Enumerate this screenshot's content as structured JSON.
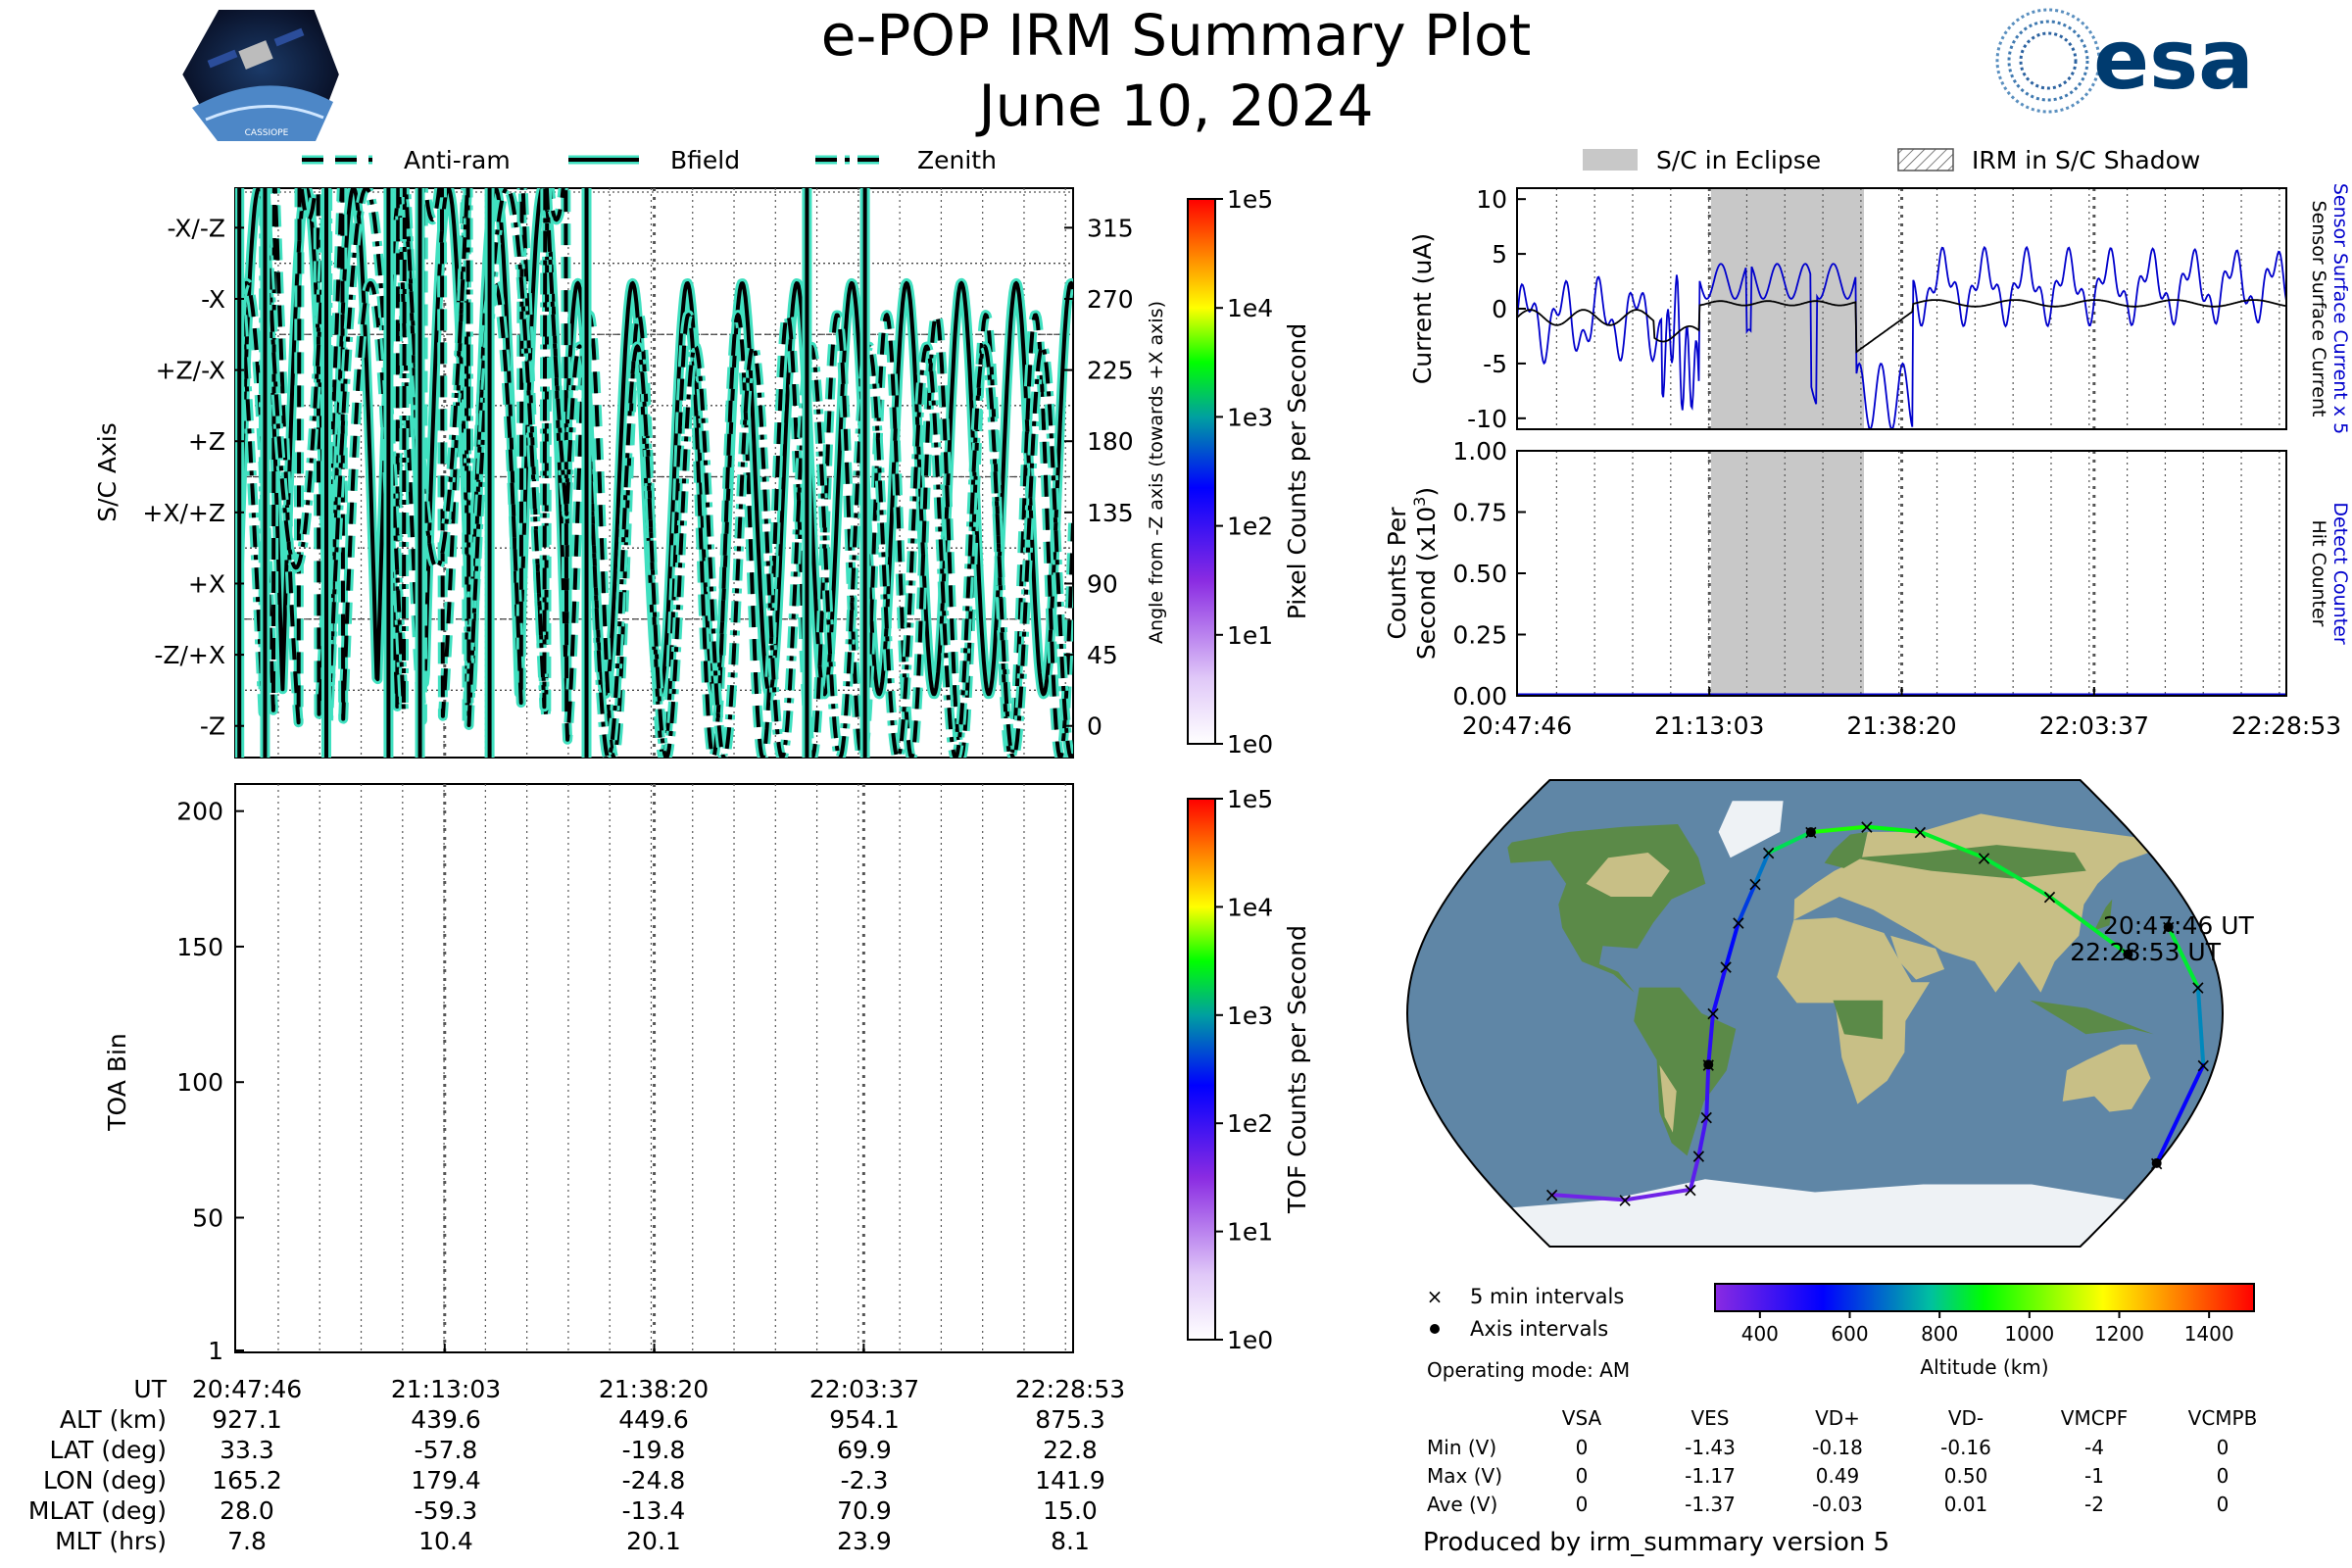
{
  "header": {
    "title": "e-POP IRM Summary Plot",
    "date": "June 10, 2024",
    "mission_badge_text": "CASSIOPE",
    "agency_logo_text": "esa"
  },
  "colors": {
    "curve_fill": "#40e0c0",
    "eclipse": "#c8c8c8",
    "detect_counter": "#0000cc",
    "map_ocean": "#5f86a6",
    "map_land": "#c8bf86",
    "map_forest": "#5b8a48",
    "map_ice": "#eef2f5"
  },
  "chart_data": [
    {
      "id": "angle-panel",
      "type": "line",
      "legend": [
        {
          "name": "Anti-ram",
          "style": "dashed"
        },
        {
          "name": "Bfield",
          "style": "solid"
        },
        {
          "name": "Zenith",
          "style": "dashdot"
        }
      ],
      "ylabel": "S/C Axis",
      "ylabel_right": "Angle from -Z axis (towards +X axis)",
      "ylim": [
        -20,
        340
      ],
      "axis_ticks": [
        {
          "label": "-X/-Z",
          "angle": 315
        },
        {
          "label": "-X",
          "angle": 270
        },
        {
          "label": "+Z/-X",
          "angle": 225
        },
        {
          "label": "+Z",
          "angle": 180
        },
        {
          "label": "+X/+Z",
          "angle": 135
        },
        {
          "label": "+X",
          "angle": 90
        },
        {
          "label": "-Z/+X",
          "angle": 45
        },
        {
          "label": "-Z",
          "angle": 0
        }
      ],
      "right_ticks": [
        315,
        270,
        225,
        180,
        135,
        90,
        45,
        0
      ],
      "colorbar": {
        "label": "Pixel Counts per Second",
        "ticks": [
          "1e5",
          "1e4",
          "1e3",
          "1e2",
          "1e1",
          "1e0"
        ]
      }
    },
    {
      "id": "toa-panel",
      "type": "heatmap",
      "ylabel": "TOA Bin",
      "ylim": [
        1,
        210
      ],
      "yticks": [
        200,
        150,
        100,
        50,
        1
      ],
      "colorbar": {
        "label": "TOF Counts per Second",
        "ticks": [
          "1e5",
          "1e4",
          "1e3",
          "1e2",
          "1e1",
          "1e0"
        ]
      }
    },
    {
      "id": "current-panel",
      "type": "line",
      "legend": [
        {
          "name": "S/C in Eclipse",
          "style": "filled"
        },
        {
          "name": "IRM in S/C Shadow",
          "style": "hatched"
        }
      ],
      "ylabel": "Current (uA)",
      "ylim": [
        -11,
        11
      ],
      "yticks": [
        10,
        5,
        0,
        -5,
        -10
      ],
      "series": [
        {
          "name": "Sensor Surface Current x 5",
          "color": "#0000cc"
        },
        {
          "name": "Sensor Surface Current",
          "color": "#000000"
        }
      ],
      "eclipse_minutes": [
        19,
        35
      ]
    },
    {
      "id": "counts-panel",
      "type": "line",
      "ylabel_line1": "Counts Per",
      "ylabel_line2": "Second (x10",
      "ylabel_exp": "3",
      "ylabel_close": ")",
      "ylim": [
        0,
        1
      ],
      "yticks": [
        "1.00",
        "0.75",
        "0.50",
        "0.25",
        "0.00"
      ],
      "series": [
        {
          "name": "Detect Counter",
          "color": "#0000cc"
        },
        {
          "name": "Hit Counter",
          "color": "#000000"
        }
      ],
      "x_ticks": [
        "20:47:46",
        "21:13:03",
        "21:38:20",
        "22:03:37",
        "22:28:53"
      ]
    },
    {
      "id": "orbit-map",
      "type": "scatter",
      "start_label": "20:47:46 UT",
      "end_label": "22:28:53 UT",
      "legend": {
        "five_min": "5 min intervals",
        "axis": "Axis intervals"
      },
      "colorbar": {
        "label": "Altitude (km)",
        "range": [
          300,
          1500
        ],
        "ticks": [
          400,
          600,
          800,
          1000,
          1200,
          1400
        ]
      }
    }
  ],
  "ephemeris": {
    "row_labels": [
      "UT",
      "ALT (km)",
      "LAT (deg)",
      "LON (deg)",
      "MLAT (deg)",
      "MLT (hrs)"
    ],
    "columns": [
      [
        "20:47:46",
        "927.1",
        "33.3",
        "165.2",
        "28.0",
        "7.8"
      ],
      [
        "21:13:03",
        "439.6",
        "-57.8",
        "179.4",
        "-59.3",
        "10.4"
      ],
      [
        "21:38:20",
        "449.6",
        "-19.8",
        "-24.8",
        "-13.4",
        "20.1"
      ],
      [
        "22:03:37",
        "954.1",
        "69.9",
        "-2.3",
        "70.9",
        "23.9"
      ],
      [
        "22:28:53",
        "875.3",
        "22.8",
        "141.9",
        "15.0",
        "8.1"
      ]
    ]
  },
  "voltages": {
    "operating_mode": "Operating mode: AM",
    "headers": [
      "VSA",
      "VES",
      "VD+",
      "VD-",
      "VMCPF",
      "VCMPB"
    ],
    "rows": [
      {
        "label": "Min (V)",
        "values": [
          "0",
          "-1.43",
          "-0.18",
          "-0.16",
          "-4",
          "0"
        ]
      },
      {
        "label": "Max (V)",
        "values": [
          "0",
          "-1.17",
          "0.49",
          "0.50",
          "-1",
          "0"
        ]
      },
      {
        "label": "Ave (V)",
        "values": [
          "0",
          "-1.37",
          "-0.03",
          "0.01",
          "-2",
          "0"
        ]
      }
    ]
  },
  "footer": "Produced by irm_summary version 5"
}
